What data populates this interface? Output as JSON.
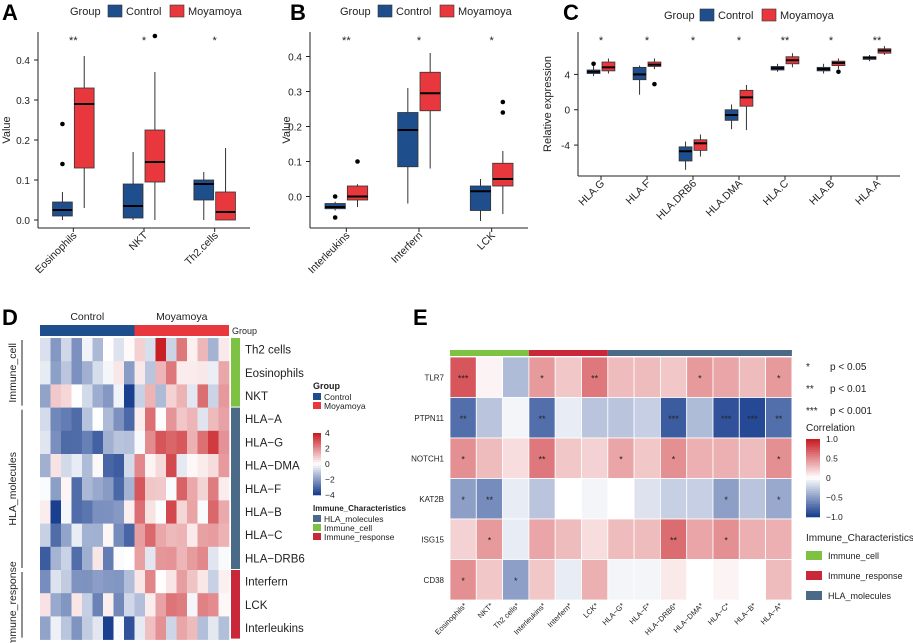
{
  "panels": {
    "a": "A",
    "b": "B",
    "c": "C",
    "d": "D",
    "e": "E"
  },
  "colors": {
    "control": "#1f4e8c",
    "moyamoya": "#e8383d",
    "immune_cell": "#7dc242",
    "immune_response": "#c9283a",
    "hla_molecules": "#4a6a87"
  },
  "legend": {
    "title": "Group",
    "control": "Control",
    "moyamoya": "Moyamoya"
  },
  "chart_data": [
    {
      "id": "A",
      "type": "box",
      "ylabel": "Value",
      "ylim": [
        -0.02,
        0.47
      ],
      "yticks": [
        "0.0",
        "0.1",
        "0.2",
        "0.3",
        "0.4"
      ],
      "categories": [
        "Eosinophils",
        "NKT",
        "Th2.cells"
      ],
      "sig": [
        "**",
        "*",
        "*"
      ],
      "series": [
        {
          "name": "Control",
          "boxes": [
            [
              0.0,
              0.01,
              0.025,
              0.045,
              0.07
            ],
            [
              0.0,
              0.005,
              0.035,
              0.09,
              0.17
            ],
            [
              0.0,
              0.05,
              0.09,
              0.1,
              0.12
            ]
          ],
          "outliers": [
            [
              0.14,
              0.24
            ],
            [],
            []
          ]
        },
        {
          "name": "Moyamoya",
          "boxes": [
            [
              0.03,
              0.13,
              0.29,
              0.33,
              0.41
            ],
            [
              0.0,
              0.095,
              0.145,
              0.225,
              0.37
            ],
            [
              0.0,
              0.0,
              0.02,
              0.07,
              0.18
            ]
          ],
          "outliers": [
            [],
            [
              0.46
            ],
            []
          ]
        }
      ]
    },
    {
      "id": "B",
      "type": "box",
      "ylabel": "Value",
      "ylim": [
        -0.09,
        0.47
      ],
      "yticks": [
        "0.0",
        "0.1",
        "0.2",
        "0.3",
        "0.4"
      ],
      "categories": [
        "Interleukins",
        "Interfern",
        "LCK"
      ],
      "sig": [
        "**",
        "*",
        "*"
      ],
      "series": [
        {
          "name": "Control",
          "boxes": [
            [
              -0.04,
              -0.035,
              -0.03,
              -0.02,
              -0.015
            ],
            [
              -0.02,
              0.085,
              0.19,
              0.24,
              0.31
            ],
            [
              -0.07,
              -0.04,
              0.015,
              0.03,
              0.05
            ]
          ],
          "outliers": [
            [
              -0.06,
              0.0
            ],
            [],
            []
          ]
        },
        {
          "name": "Moyamoya",
          "boxes": [
            [
              -0.03,
              -0.01,
              0.0,
              0.03,
              0.035
            ],
            [
              0.08,
              0.245,
              0.295,
              0.355,
              0.41
            ],
            [
              -0.05,
              0.03,
              0.05,
              0.095,
              0.13
            ]
          ],
          "outliers": [
            [
              0.1
            ],
            [],
            [
              0.24,
              0.27
            ]
          ]
        }
      ]
    },
    {
      "id": "C",
      "type": "box",
      "ylabel": "Relative expression",
      "ylim": [
        -7.5,
        8.8
      ],
      "yticks": [
        "-4",
        "0",
        "4"
      ],
      "categories": [
        "HLA.G",
        "HLA.F",
        "HLA.DRB6",
        "HLA.DMA",
        "HLA.C",
        "HLA.B",
        "HLA.A"
      ],
      "sig": [
        "*",
        "*",
        "*",
        "*",
        "**",
        "*",
        "**"
      ],
      "series": [
        {
          "name": "Control",
          "boxes": [
            [
              3.8,
              4.1,
              4.3,
              4.5,
              5.0
            ],
            [
              1.7,
              3.4,
              4.0,
              4.8,
              5.0
            ],
            [
              -6.8,
              -5.8,
              -4.7,
              -4.2,
              -3.6
            ],
            [
              -2.2,
              -1.2,
              -0.6,
              0.0,
              0.6
            ],
            [
              4.3,
              4.5,
              4.7,
              4.9,
              5.2
            ],
            [
              4.1,
              4.4,
              4.6,
              4.8,
              5.2
            ],
            [
              5.5,
              5.7,
              5.9,
              6.0,
              6.2
            ]
          ],
          "outliers": [
            [
              5.2
            ],
            [],
            [],
            [],
            [],
            [],
            []
          ]
        },
        {
          "name": "Moyamoya",
          "boxes": [
            [
              4.1,
              4.4,
              4.8,
              5.4,
              5.8
            ],
            [
              4.6,
              4.9,
              5.1,
              5.4,
              5.8
            ],
            [
              -5.3,
              -4.6,
              -3.8,
              -3.4,
              -2.8
            ],
            [
              -2.3,
              0.4,
              1.4,
              2.2,
              2.8
            ],
            [
              4.8,
              5.2,
              5.6,
              6.0,
              6.4
            ],
            [
              4.6,
              5.0,
              5.3,
              5.5,
              5.8
            ],
            [
              6.2,
              6.4,
              6.7,
              6.9,
              7.2
            ]
          ],
          "outliers": [
            [],
            [
              2.9
            ],
            [],
            [],
            [],
            [
              4.3
            ],
            []
          ]
        }
      ]
    },
    {
      "id": "D",
      "type": "heatmap",
      "column_groups": [
        "Control",
        "Moyamoya"
      ],
      "group_label": "Group",
      "rows": [
        "Th2 cells",
        "Eosinophils",
        "NKT",
        "HLA−A",
        "HLA−G",
        "HLA−DMA",
        "HLA−F",
        "HLA−B",
        "HLA−C",
        "HLA−DRB6",
        "Interfern",
        "LCK",
        "Interleukins"
      ],
      "row_groups": [
        {
          "name": "Immune_cell",
          "rows": 3
        },
        {
          "name": "HLA_molecules",
          "rows": 7
        },
        {
          "name": "Immune_response",
          "rows": 3
        }
      ],
      "n_control": 9,
      "n_moyamoya": 9,
      "scale": {
        "ticks": [
          "4",
          "2",
          "0",
          "−2",
          "−4"
        ],
        "min": -4,
        "max": 4
      },
      "legend": {
        "group_title": "Group",
        "char_title": "Immune_Characteristics",
        "char_items": [
          "HLA_molecules",
          "Immune_cell",
          "Immune_response"
        ]
      }
    },
    {
      "id": "E",
      "type": "heatmap",
      "rows": [
        "TLR7",
        "PTPN11",
        "NOTCH1",
        "KAT2B",
        "ISG15",
        "CD38"
      ],
      "columns": [
        "Eosinophils",
        "NKT",
        "Th2 cells",
        "Interleukins",
        "Interfern",
        "LCK",
        "HLA−G",
        "HLA−F",
        "HLA−DRB6",
        "HLA−DMA",
        "HLA−C",
        "HLA−B",
        "HLA−A"
      ],
      "column_groups": [
        {
          "name": "Immune_cell",
          "cols": 3
        },
        {
          "name": "Immune_response",
          "cols": 3
        },
        {
          "name": "HLA_molecules",
          "cols": 7
        }
      ],
      "values": [
        [
          0.75,
          0.05,
          -0.35,
          0.45,
          0.25,
          0.6,
          0.3,
          0.3,
          0.25,
          0.45,
          0.4,
          0.3,
          0.45
        ],
        [
          -0.75,
          -0.3,
          -0.05,
          -0.75,
          -0.1,
          -0.3,
          -0.3,
          -0.25,
          -0.85,
          -0.35,
          -0.9,
          -0.95,
          -0.75
        ],
        [
          0.5,
          0.3,
          0.15,
          0.6,
          0.25,
          0.2,
          0.4,
          0.25,
          0.5,
          0.35,
          0.35,
          0.3,
          0.5
        ],
        [
          -0.5,
          -0.6,
          -0.1,
          -0.3,
          0.0,
          -0.05,
          0.0,
          -0.15,
          -0.25,
          -0.25,
          -0.5,
          -0.3,
          -0.45
        ],
        [
          0.2,
          0.45,
          -0.1,
          0.4,
          0.3,
          0.15,
          0.3,
          0.3,
          0.65,
          0.4,
          0.5,
          0.35,
          0.35
        ],
        [
          0.5,
          0.25,
          -0.5,
          0.25,
          -0.1,
          0.35,
          -0.05,
          -0.05,
          0.1,
          0.0,
          0.05,
          0.0,
          0.3
        ]
      ],
      "sig": [
        [
          "***",
          "",
          "",
          "*",
          "",
          "**",
          "",
          "",
          "",
          "*",
          "",
          "",
          "*"
        ],
        [
          "**",
          "",
          "",
          "**",
          "",
          "",
          "",
          "",
          "***",
          "",
          "***",
          "***",
          "**"
        ],
        [
          "*",
          "",
          "",
          "**",
          "",
          "",
          "*",
          "",
          "*",
          "",
          "",
          "",
          "*"
        ],
        [
          "*",
          "**",
          "",
          "",
          "",
          "",
          "",
          "",
          "",
          "",
          "*",
          "",
          "*"
        ],
        [
          "",
          "*",
          "",
          "",
          "",
          "",
          "",
          "",
          "**",
          "",
          "*",
          "",
          ""
        ],
        [
          "*",
          "",
          "*",
          "",
          "",
          "",
          "",
          "",
          "",
          "",
          "",
          "",
          ""
        ]
      ],
      "sig_legend": [
        {
          "sym": "*",
          "text": "p < 0.05"
        },
        {
          "sym": "**",
          "text": "p < 0.01"
        },
        {
          "sym": "***",
          "text": "p < 0.001"
        }
      ],
      "scale": {
        "title": "Correlation",
        "ticks": [
          "1.0",
          "0.5",
          "0",
          "−0.5",
          "−1.0"
        ]
      },
      "char_legend": {
        "title": "Immune_Characteristics",
        "items": [
          "Immune_cell",
          "Immune_response",
          "HLA_molecules"
        ]
      }
    }
  ]
}
